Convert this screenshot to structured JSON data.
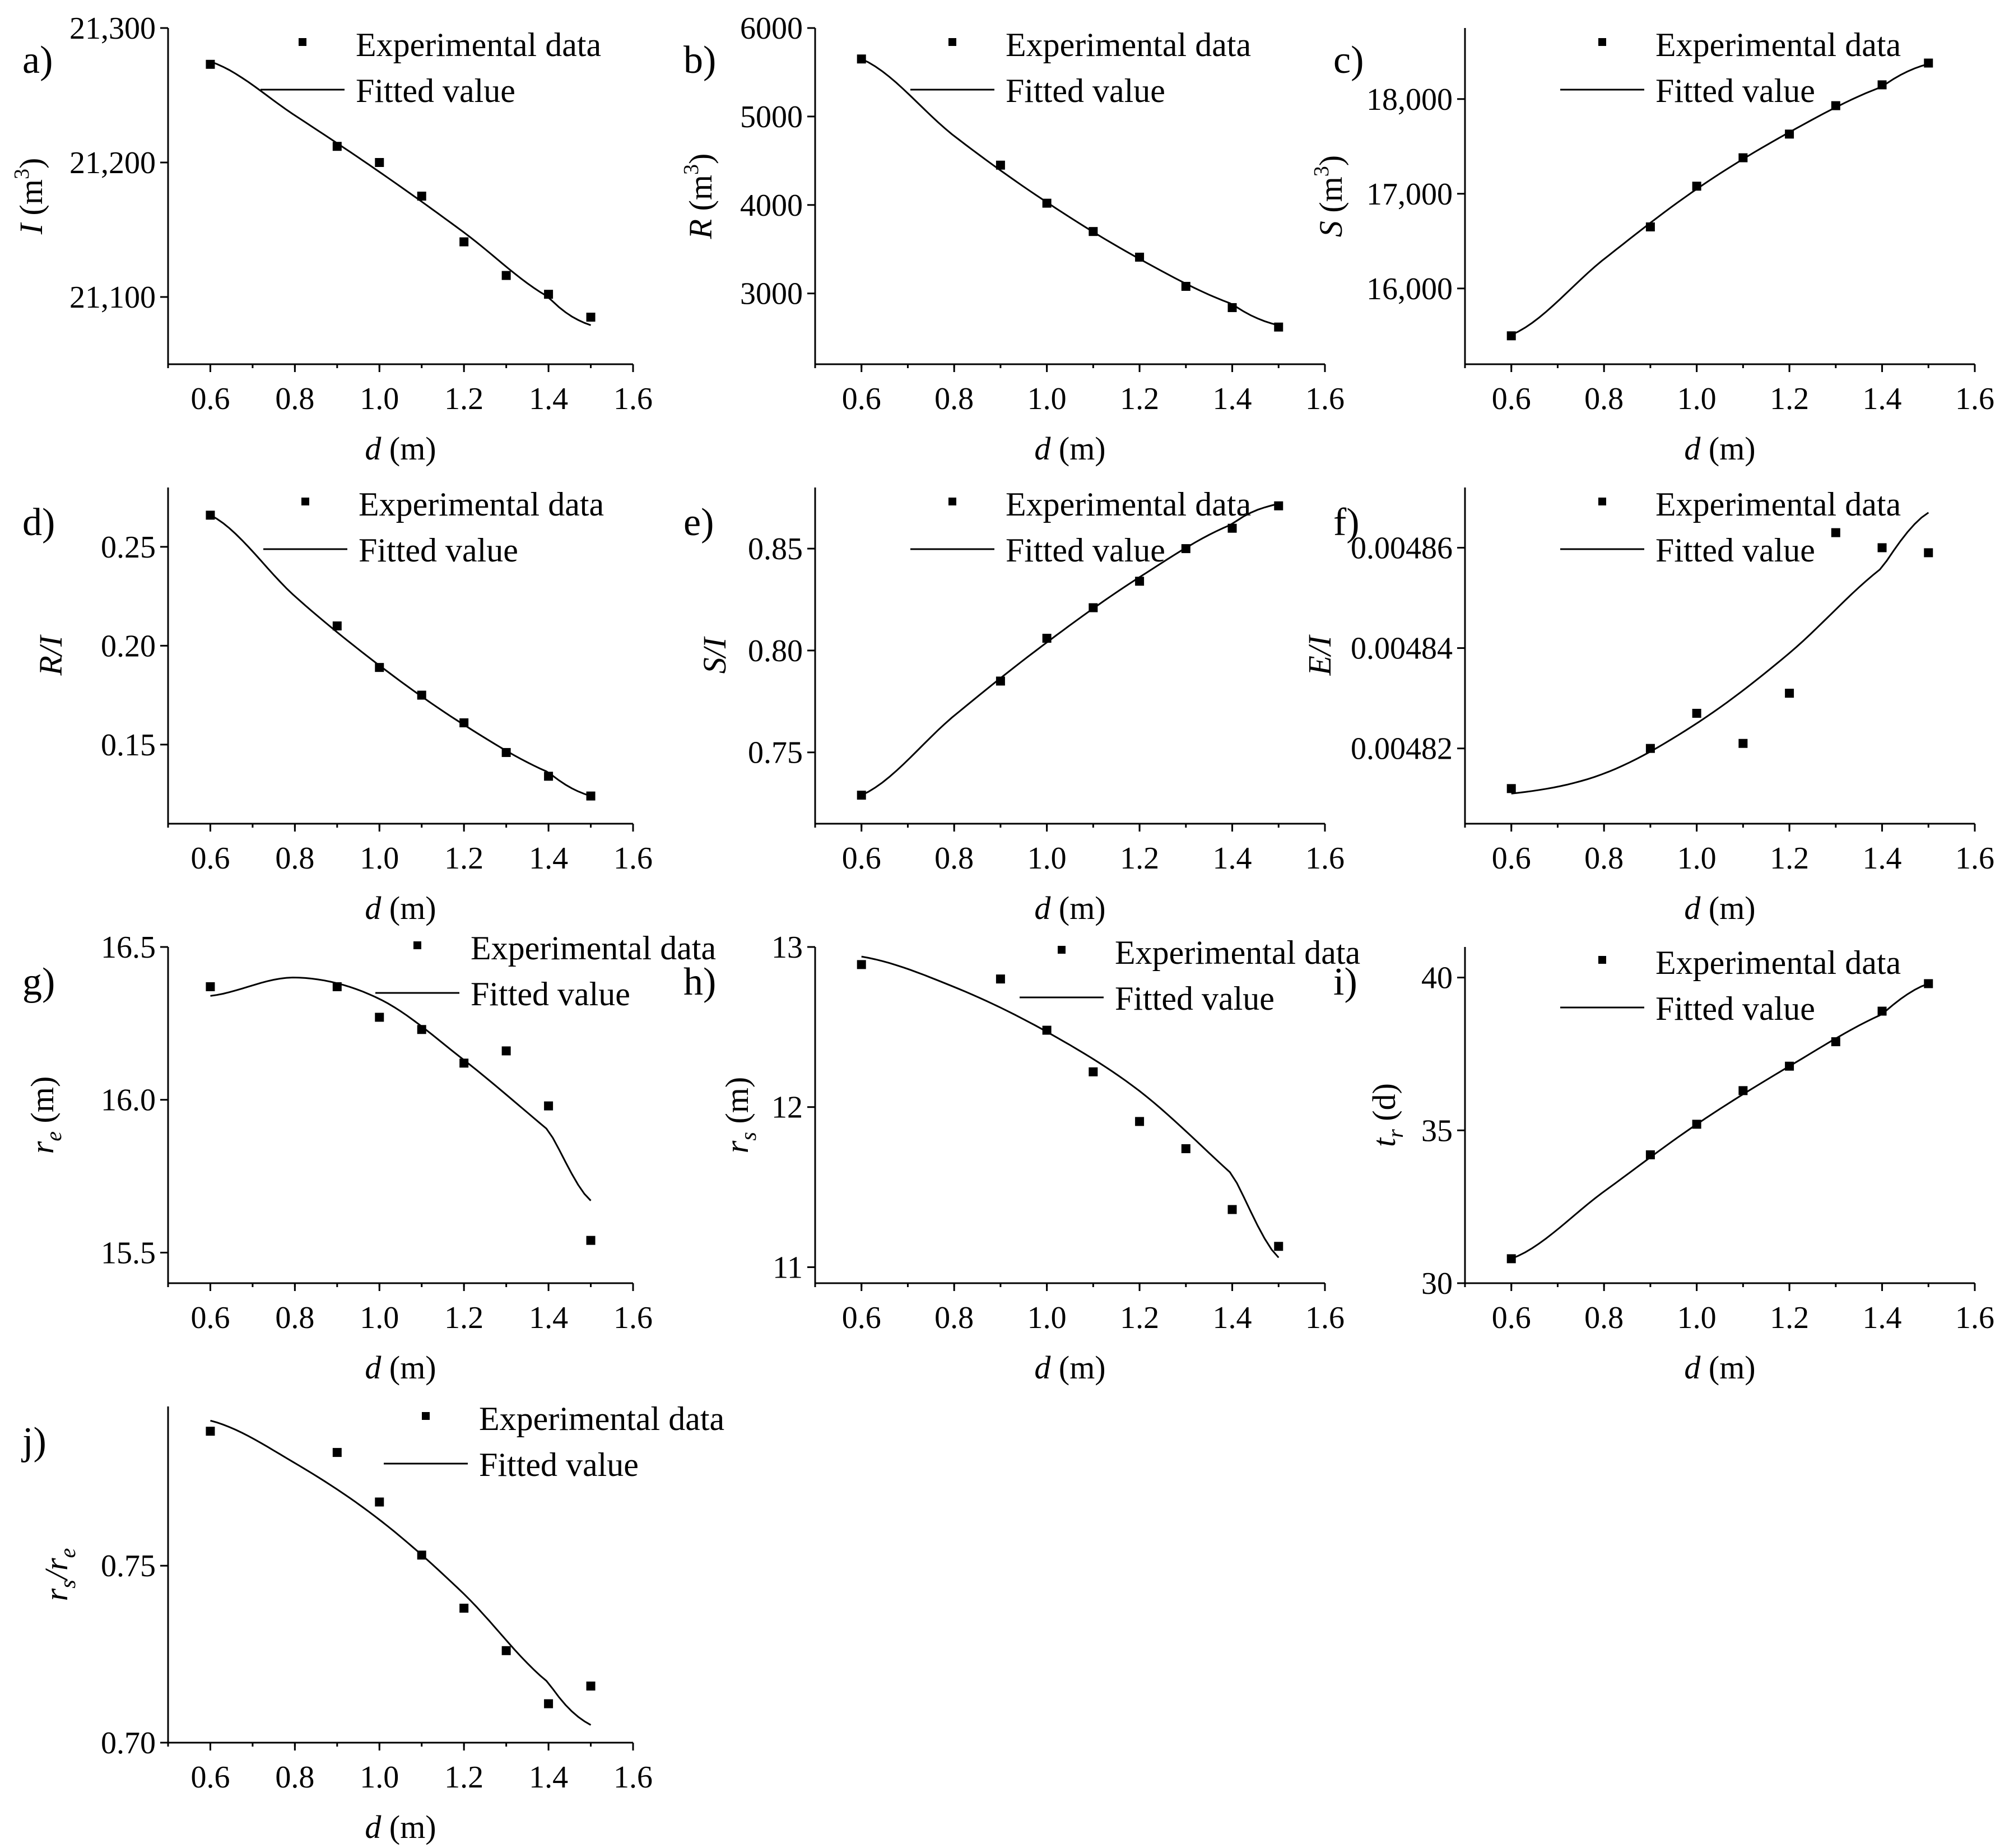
{
  "legend": {
    "experimental": "Experimental data",
    "fitted": "Fitted value"
  },
  "chart_data": [
    {
      "type": "scatter",
      "panel": "a)",
      "xlabel": "d",
      "xunit": " (m)",
      "ylabel": "I",
      "yunit": " (m",
      "ysup": "3",
      "yunit_end": ")",
      "xlim": [
        0.5,
        1.6
      ],
      "ylim": [
        21050,
        21300
      ],
      "yticks": [
        21100,
        21200,
        21300
      ],
      "ytick_labels": [
        "21,100",
        "21,200",
        "21,300"
      ],
      "x": [
        0.6,
        0.9,
        1.0,
        1.1,
        1.2,
        1.3,
        1.4,
        1.5
      ],
      "experimental": [
        21273,
        21212,
        21200,
        21175,
        21141,
        21116,
        21102,
        21085
      ],
      "fitted": {
        "x": [
          0.6,
          0.8,
          1.0,
          1.2,
          1.4,
          1.5
        ],
        "y": [
          21275,
          21235,
          21193,
          21148,
          21100,
          21079
        ]
      }
    },
    {
      "type": "scatter",
      "panel": "b)",
      "xlabel": "d",
      "xunit": " (m)",
      "ylabel": "R",
      "yunit": " (m",
      "ysup": "3",
      "yunit_end": ")",
      "xlim": [
        0.5,
        1.6
      ],
      "ylim": [
        2200,
        6000
      ],
      "yticks": [
        3000,
        4000,
        5000,
        6000
      ],
      "ytick_labels": [
        "3000",
        "4000",
        "5000",
        "6000"
      ],
      "x": [
        0.6,
        0.9,
        1.0,
        1.1,
        1.2,
        1.3,
        1.4,
        1.5
      ],
      "experimental": [
        5650,
        4450,
        4020,
        3700,
        3410,
        3080,
        2840,
        2620
      ],
      "fitted": {
        "x": [
          0.6,
          0.8,
          1.0,
          1.2,
          1.4,
          1.5
        ],
        "y": [
          5650,
          4780,
          4030,
          3390,
          2880,
          2640
        ]
      }
    },
    {
      "type": "scatter",
      "panel": "c)",
      "xlabel": "d",
      "xunit": " (m)",
      "ylabel": "S",
      "yunit": " (m",
      "ysup": "3",
      "yunit_end": ")",
      "xlim": [
        0.5,
        1.6
      ],
      "ylim": [
        15200,
        18750
      ],
      "yticks": [
        16000,
        17000,
        18000
      ],
      "ytick_labels": [
        "16,000",
        "17,000",
        "18,000"
      ],
      "x": [
        0.6,
        0.9,
        1.0,
        1.1,
        1.2,
        1.3,
        1.4,
        1.5
      ],
      "experimental": [
        15500,
        16650,
        17080,
        17380,
        17630,
        17930,
        18150,
        18380
      ],
      "fitted": {
        "x": [
          0.6,
          0.8,
          1.0,
          1.2,
          1.4,
          1.5
        ],
        "y": [
          15510,
          16310,
          17050,
          17650,
          18130,
          18370
        ]
      }
    },
    {
      "type": "scatter",
      "panel": "d)",
      "xlabel": "d",
      "xunit": " (m)",
      "ylabel": "R/I",
      "yunit": "",
      "ysup": "",
      "yunit_end": "",
      "xlim": [
        0.5,
        1.6
      ],
      "ylim": [
        0.11,
        0.28
      ],
      "yticks": [
        0.15,
        0.2,
        0.25
      ],
      "ytick_labels": [
        "0.15",
        "0.20",
        "0.25"
      ],
      "x": [
        0.6,
        0.9,
        1.0,
        1.1,
        1.2,
        1.3,
        1.4,
        1.5
      ],
      "experimental": [
        0.266,
        0.21,
        0.189,
        0.175,
        0.161,
        0.146,
        0.134,
        0.124
      ],
      "fitted": {
        "x": [
          0.6,
          0.8,
          1.0,
          1.2,
          1.4,
          1.5
        ],
        "y": [
          0.266,
          0.225,
          0.19,
          0.16,
          0.136,
          0.124
        ]
      }
    },
    {
      "type": "scatter",
      "panel": "e)",
      "xlabel": "d",
      "xunit": " (m)",
      "ylabel": "S/I",
      "yunit": "",
      "ysup": "",
      "yunit_end": "",
      "xlim": [
        0.5,
        1.6
      ],
      "ylim": [
        0.715,
        0.88
      ],
      "yticks": [
        0.75,
        0.8,
        0.85
      ],
      "ytick_labels": [
        "0.75",
        "0.80",
        "0.85"
      ],
      "x": [
        0.6,
        0.9,
        1.0,
        1.1,
        1.2,
        1.3,
        1.4,
        1.5
      ],
      "experimental": [
        0.729,
        0.785,
        0.806,
        0.821,
        0.834,
        0.85,
        0.86,
        0.871
      ],
      "fitted": {
        "x": [
          0.6,
          0.8,
          1.0,
          1.2,
          1.4,
          1.5
        ],
        "y": [
          0.729,
          0.768,
          0.804,
          0.836,
          0.862,
          0.872
        ]
      }
    },
    {
      "type": "scatter",
      "panel": "f)",
      "xlabel": "d",
      "xunit": " (m)",
      "ylabel": "E/I",
      "yunit": "",
      "ysup": "",
      "yunit_end": "",
      "xlim": [
        0.5,
        1.6
      ],
      "ylim": [
        0.004805,
        0.004872
      ],
      "yticks": [
        0.00482,
        0.00484,
        0.00486
      ],
      "ytick_labels": [
        "0.00482",
        "0.00484",
        "0.00486"
      ],
      "x": [
        0.6,
        0.9,
        1.0,
        1.1,
        1.2,
        1.3,
        1.4,
        1.5
      ],
      "experimental": [
        0.004812,
        0.00482,
        0.004827,
        0.004821,
        0.004831,
        0.004863,
        0.00486,
        0.004859
      ],
      "fitted": {
        "x": [
          0.6,
          0.8,
          1.0,
          1.2,
          1.4,
          1.5
        ],
        "y": [
          0.004811,
          0.004815,
          0.004825,
          0.004839,
          0.004856,
          0.004867
        ]
      }
    },
    {
      "type": "scatter",
      "panel": "g)",
      "xlabel": "d",
      "xunit": " (m)",
      "ylabel": "r",
      "ysub": "e",
      "yunit": " (m)",
      "ysup": "",
      "yunit_end": "",
      "xlim": [
        0.5,
        1.6
      ],
      "ylim": [
        15.4,
        16.5
      ],
      "yticks": [
        15.5,
        16.0,
        16.5
      ],
      "ytick_labels": [
        "15.5",
        "16.0",
        "16.5"
      ],
      "x": [
        0.6,
        0.9,
        1.0,
        1.1,
        1.2,
        1.3,
        1.4,
        1.5
      ],
      "experimental": [
        16.37,
        16.37,
        16.27,
        16.23,
        16.12,
        16.16,
        15.98,
        15.54
      ],
      "fitted": {
        "x": [
          0.6,
          0.8,
          1.0,
          1.2,
          1.4,
          1.5
        ],
        "y": [
          16.34,
          16.4,
          16.33,
          16.13,
          15.9,
          15.67
        ]
      }
    },
    {
      "type": "scatter",
      "panel": "h)",
      "xlabel": "d",
      "xunit": " (m)",
      "ylabel": "r",
      "ysub": "s",
      "yunit": " (m)",
      "ysup": "",
      "yunit_end": "",
      "xlim": [
        0.5,
        1.6
      ],
      "ylim": [
        10.9,
        13.0
      ],
      "yticks": [
        11,
        12,
        13
      ],
      "ytick_labels": [
        "11",
        "12",
        "13"
      ],
      "x": [
        0.6,
        0.9,
        1.0,
        1.1,
        1.2,
        1.3,
        1.4,
        1.5
      ],
      "experimental": [
        12.89,
        12.8,
        12.48,
        12.22,
        11.91,
        11.74,
        11.36,
        11.13
      ],
      "fitted": {
        "x": [
          0.6,
          0.8,
          1.0,
          1.2,
          1.4,
          1.5
        ],
        "y": [
          12.94,
          12.75,
          12.47,
          12.1,
          11.58,
          11.06
        ]
      }
    },
    {
      "type": "scatter",
      "panel": "i)",
      "xlabel": "d",
      "xunit": " (m)",
      "ylabel": "t",
      "ysub": "r",
      "yunit": " (d)",
      "ysup": "",
      "yunit_end": "",
      "xlim": [
        0.5,
        1.6
      ],
      "ylim": [
        30,
        41
      ],
      "yticks": [
        30,
        35,
        40
      ],
      "ytick_labels": [
        "30",
        "35",
        "40"
      ],
      "x": [
        0.6,
        0.9,
        1.0,
        1.1,
        1.2,
        1.3,
        1.4,
        1.5
      ],
      "experimental": [
        30.8,
        34.2,
        35.2,
        36.3,
        37.1,
        37.9,
        38.9,
        39.8
      ],
      "fitted": {
        "x": [
          0.6,
          0.8,
          1.0,
          1.2,
          1.4,
          1.5
        ],
        "y": [
          30.8,
          33.0,
          35.2,
          37.1,
          38.8,
          39.8
        ]
      }
    },
    {
      "type": "scatter",
      "panel": "j)",
      "xlabel": "d",
      "xunit": " (m)",
      "ylabel": "r",
      "ysub": "s",
      "ylabel2": "/r",
      "ysub2": "e",
      "yunit": "",
      "ysup": "",
      "yunit_end": "",
      "xlim": [
        0.5,
        1.6
      ],
      "ylim": [
        0.7,
        0.795
      ],
      "yticks": [
        0.7,
        0.75
      ],
      "ytick_labels": [
        "0.70",
        "0.75"
      ],
      "x": [
        0.6,
        0.9,
        1.0,
        1.1,
        1.2,
        1.3,
        1.4,
        1.5
      ],
      "experimental": [
        0.788,
        0.782,
        0.768,
        0.753,
        0.738,
        0.726,
        0.711,
        0.716
      ],
      "fitted": {
        "x": [
          0.6,
          0.8,
          1.0,
          1.2,
          1.4,
          1.5
        ],
        "y": [
          0.791,
          0.779,
          0.763,
          0.742,
          0.717,
          0.705
        ]
      }
    }
  ]
}
